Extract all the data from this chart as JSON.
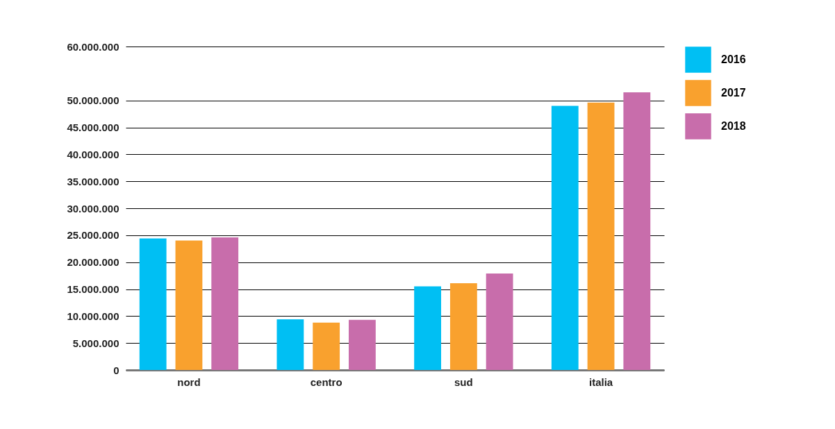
{
  "chart_data": {
    "type": "bar",
    "categories": [
      "nord",
      "centro",
      "sud",
      "italia"
    ],
    "series": [
      {
        "name": "2016",
        "color": "#00bff3",
        "values": [
          24400000,
          9400000,
          15500000,
          49000000
        ]
      },
      {
        "name": "2017",
        "color": "#f9a12e",
        "values": [
          24000000,
          8800000,
          16100000,
          49600000
        ]
      },
      {
        "name": "2018",
        "color": "#c86dab",
        "values": [
          24600000,
          9300000,
          17900000,
          51500000
        ]
      }
    ],
    "ylim": [
      0,
      60000000
    ],
    "yticks": [
      0,
      {
        "value": 5000000,
        "label": "5.000.000"
      },
      {
        "value": 10000000,
        "label": "10.000.000"
      },
      {
        "value": 15000000,
        "label": "15.000.000"
      },
      {
        "value": 20000000,
        "label": "20.000.000"
      },
      {
        "value": 25000000,
        "label": "25.000.000"
      },
      {
        "value": 30000000,
        "label": "30.000.000"
      },
      {
        "value": 35000000,
        "label": "35.000.000"
      },
      {
        "value": 40000000,
        "label": "40.000.000"
      },
      {
        "value": 45000000,
        "label": "45.000.000"
      },
      {
        "value": 50000000,
        "label": "50.000.000"
      },
      {
        "value": 60000000,
        "label": "60.000.000"
      }
    ],
    "grid": "y",
    "legend": "right"
  }
}
